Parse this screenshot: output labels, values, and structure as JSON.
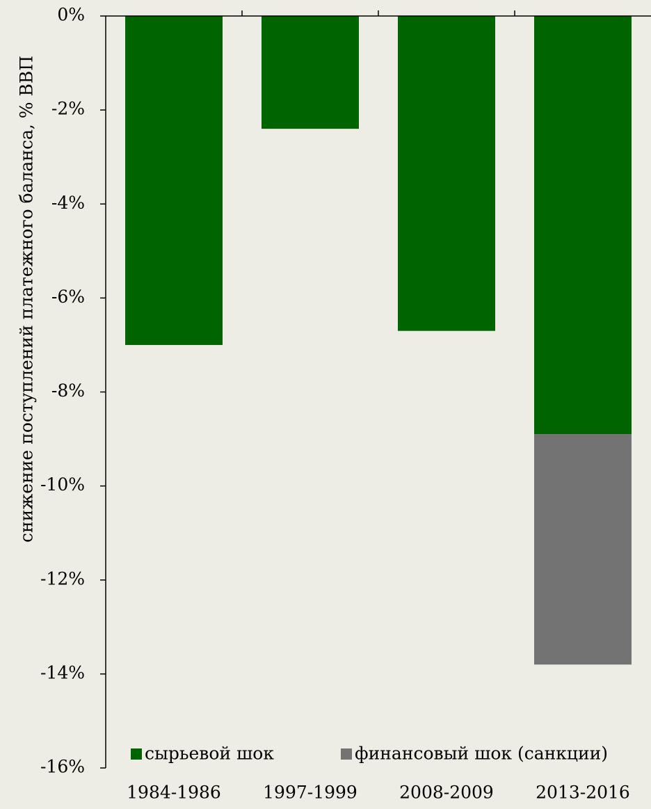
{
  "chart_data": {
    "type": "stacked_bar",
    "y_label": "снижение поступлений платежного баланса, % ВВП",
    "categories": [
      "1984-1986",
      "1997-1999",
      "2008-2009",
      "2013-2016"
    ],
    "series": [
      {
        "name": "сырьевой шок",
        "color": "#006400",
        "values": [
          -7.0,
          -2.4,
          -6.7,
          -8.9
        ]
      },
      {
        "name": "финансовый шок (санкции)",
        "color": "#737373",
        "values": [
          0,
          0,
          0,
          -4.9
        ]
      }
    ],
    "ylim": [
      -16,
      0
    ],
    "yticks": [
      {
        "value": 0,
        "label": "0%"
      },
      {
        "value": -2,
        "label": "-2%"
      },
      {
        "value": -4,
        "label": "-4%"
      },
      {
        "value": -6,
        "label": "-6%"
      },
      {
        "value": -8,
        "label": "-8%"
      },
      {
        "value": -10,
        "label": "-10%"
      },
      {
        "value": -12,
        "label": "-12%"
      },
      {
        "value": -14,
        "label": "-14%"
      },
      {
        "value": -16,
        "label": "-16%"
      }
    ],
    "legend": "bottom"
  }
}
